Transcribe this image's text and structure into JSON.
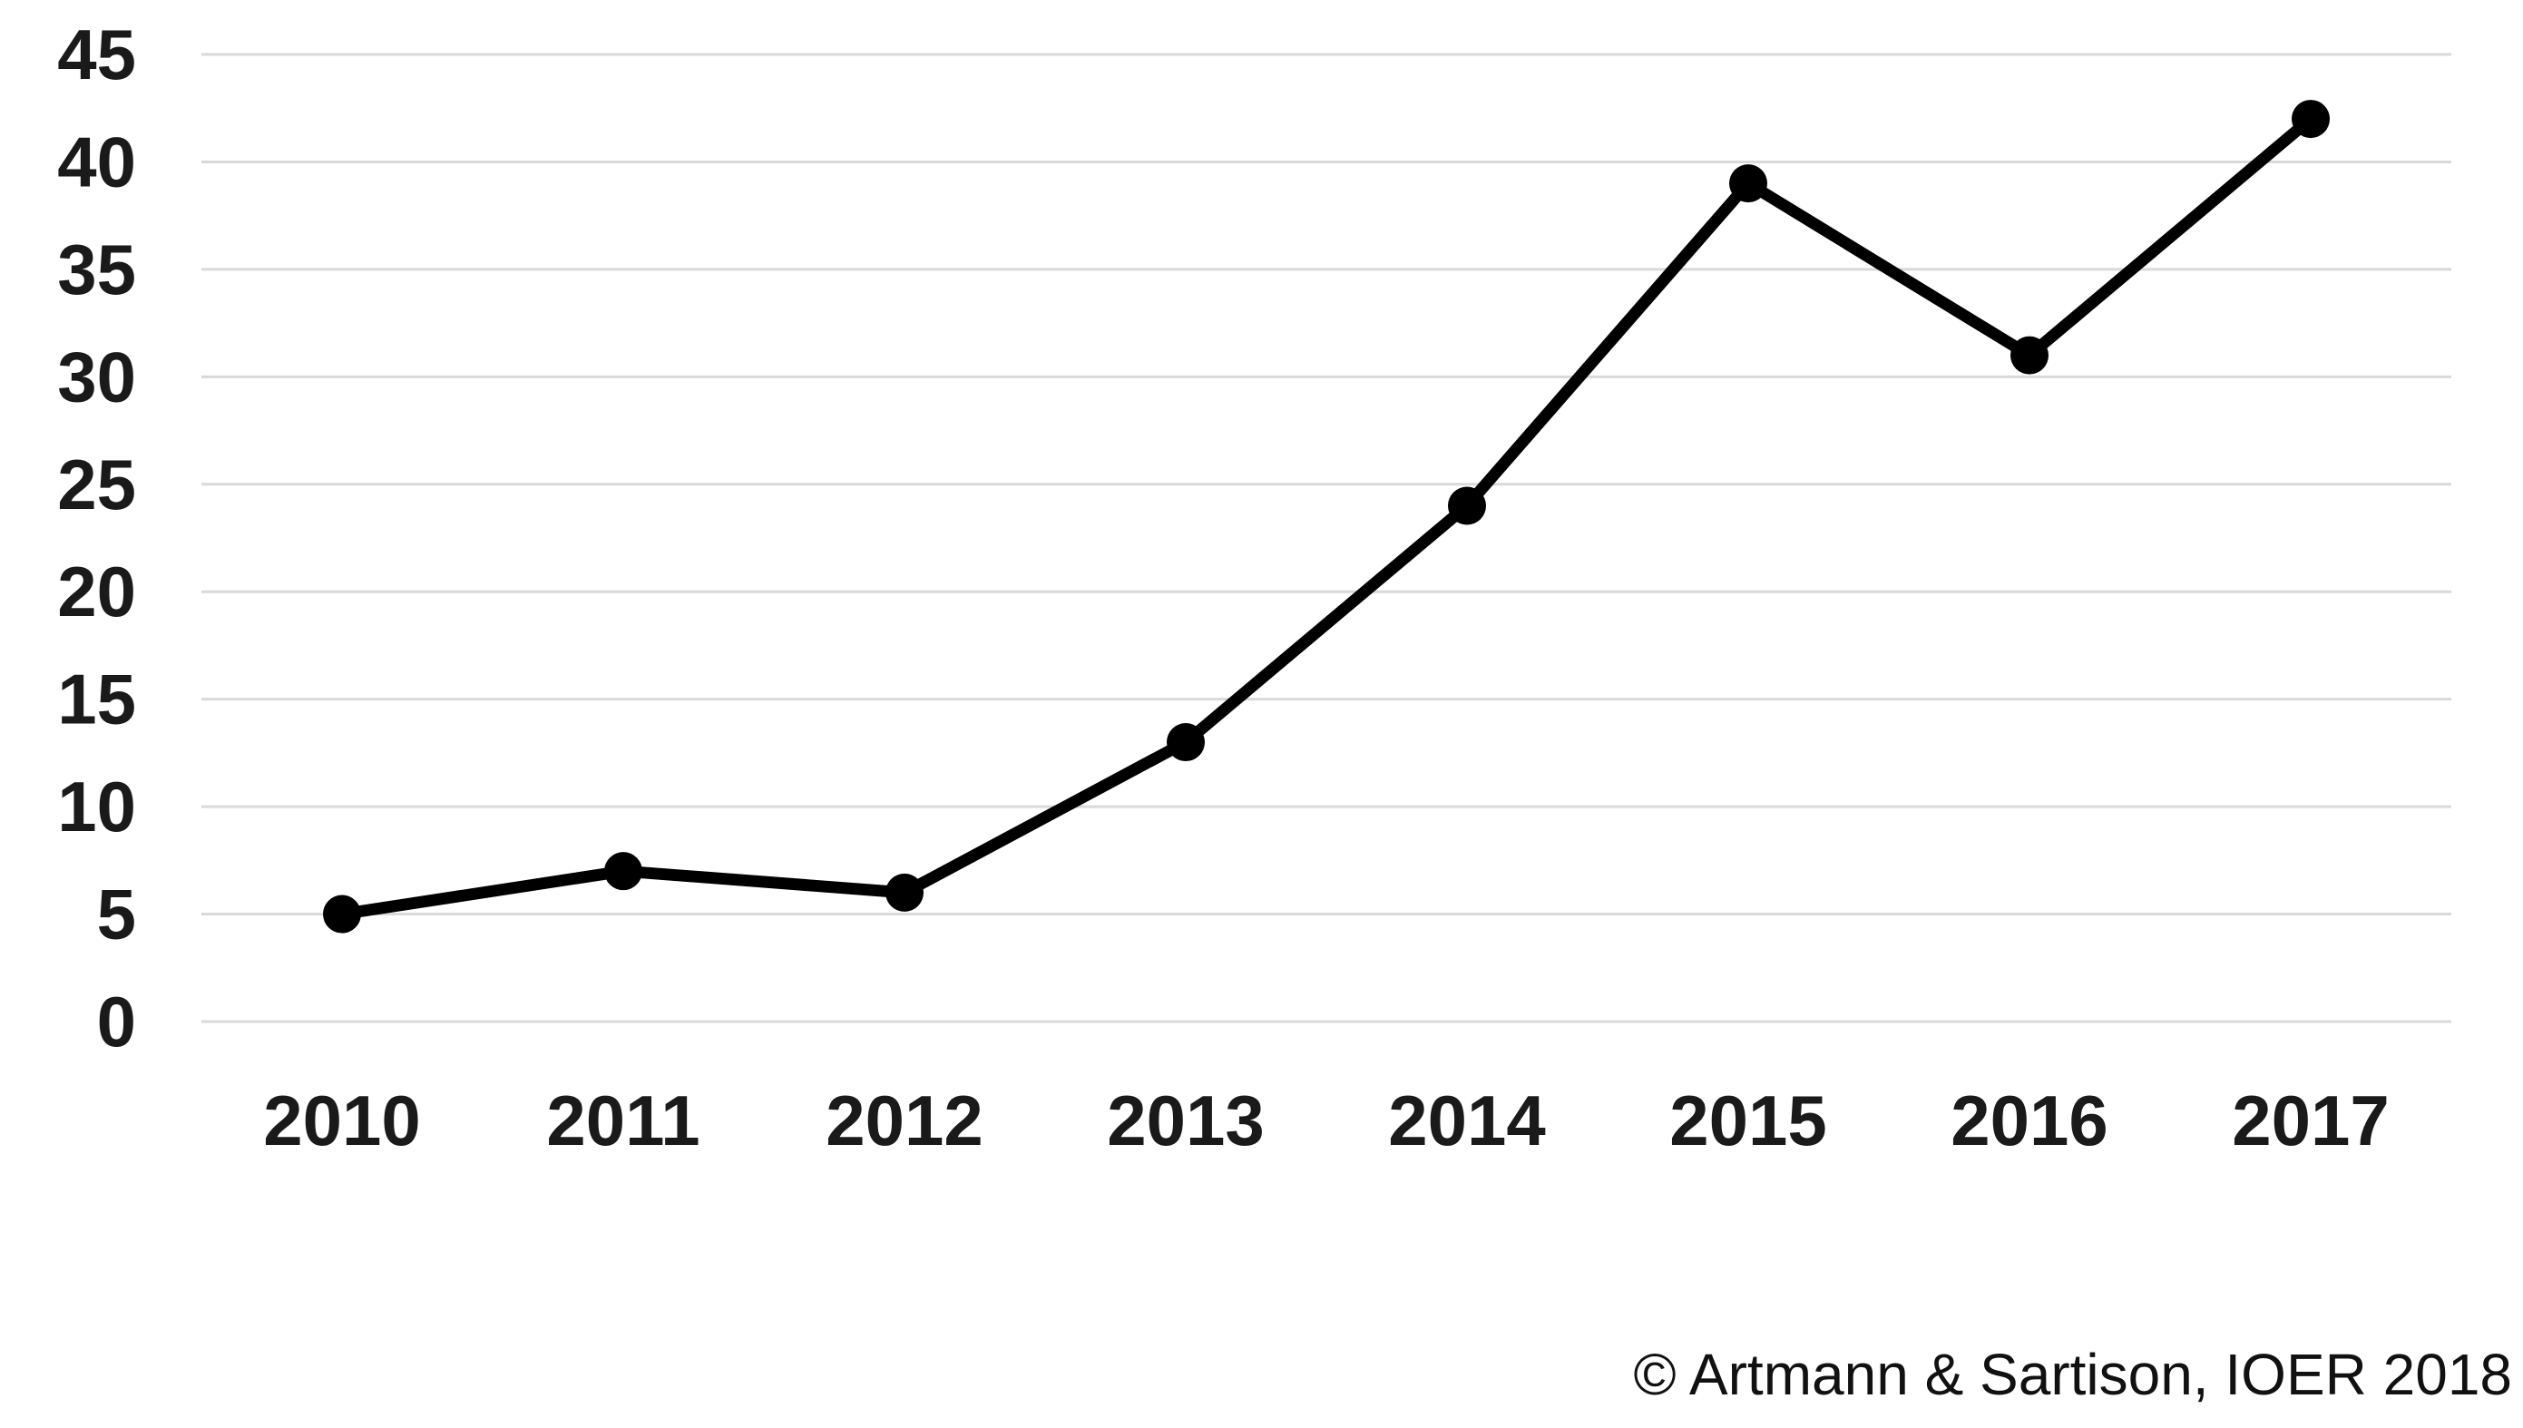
{
  "chart_data": {
    "type": "line",
    "title": "",
    "xlabel": "",
    "ylabel": "",
    "categories": [
      "2010",
      "2011",
      "2012",
      "2013",
      "2014",
      "2015",
      "2016",
      "2017"
    ],
    "series": [
      {
        "name": "",
        "values": [
          5,
          7,
          6,
          13,
          24,
          39,
          31,
          42
        ]
      }
    ],
    "ylim": [
      0,
      45
    ],
    "yticks": [
      0,
      5,
      10,
      15,
      20,
      25,
      30,
      35,
      40,
      45
    ],
    "grid": "horizontal",
    "legend_position": "none",
    "line_color": "#000000",
    "marker": "circle",
    "marker_color": "#000000",
    "gridline_color": "#d9d9d9",
    "tick_label_color": "#1a1a1a"
  },
  "attribution": {
    "text": "© Artmann & Sartison, IOER 2018"
  }
}
